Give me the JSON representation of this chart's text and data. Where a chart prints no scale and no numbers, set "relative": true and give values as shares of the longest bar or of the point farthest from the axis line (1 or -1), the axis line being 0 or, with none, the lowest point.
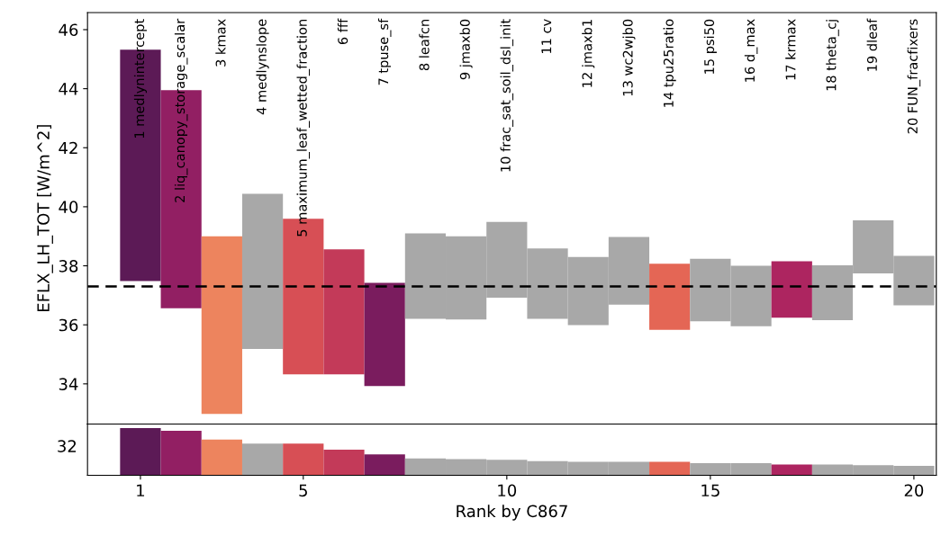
{
  "chart_data": [
    {
      "type": "bar",
      "ylabel": "EFLX_LH_TOT [W/m^2]",
      "tick_labels": "y",
      "x": [
        1,
        2,
        3,
        4,
        5,
        6,
        7,
        8,
        9,
        10,
        11,
        12,
        13,
        14,
        15,
        16,
        17,
        18,
        19,
        20
      ],
      "base": [
        37.48,
        36.56,
        32.98,
        35.18,
        34.32,
        34.32,
        33.93,
        36.2,
        36.18,
        36.92,
        36.2,
        35.99,
        36.68,
        35.83,
        36.12,
        35.95,
        36.24,
        36.16,
        37.74,
        36.66
      ],
      "values": [
        7.84,
        7.39,
        6.02,
        5.26,
        5.27,
        4.24,
        3.49,
        2.9,
        2.82,
        2.57,
        2.39,
        2.31,
        2.3,
        2.24,
        2.12,
        2.05,
        1.91,
        1.86,
        1.8,
        1.68
      ],
      "colors": [
        "#5c1a56",
        "#921f63",
        "#ed845e",
        "#a8a8a8",
        "#d74f55",
        "#c33a59",
        "#7a1c5e",
        "#a8a8a8",
        "#a8a8a8",
        "#a8a8a8",
        "#a8a8a8",
        "#a8a8a8",
        "#a8a8a8",
        "#e46655",
        "#a8a8a8",
        "#a8a8a8",
        "#ad2560",
        "#a8a8a8",
        "#a8a8a8",
        "#a8a8a8"
      ],
      "xlim": [
        -0.3,
        20.55
      ],
      "ylim": [
        32.64,
        46.58
      ],
      "yticks": [
        34,
        36,
        38,
        40,
        42,
        44,
        46
      ],
      "ref_lines": [
        {
          "axis": "y",
          "value": 37.3,
          "color": "#000000",
          "line_style": "dashed"
        }
      ],
      "annotations": [
        "1 medlynintercept",
        "2 liq_canopy_storage_scalar",
        "3 kmax",
        "4 medlynslope",
        "5 maximum_leaf_wetted_fraction",
        "6 fff",
        "7 tpuse_sf",
        "8 leafcn",
        "9 jmaxb0",
        "10 frac_sat_soil_dsl_init",
        "11 cv",
        "12 jmaxb1",
        "13 wc2wjb0",
        "14 tpu25ratio",
        "15 psi50",
        "16 d_max",
        "17 krmax",
        "18 theta_cj",
        "19 dleaf",
        "20 FUN_fracfixers"
      ]
    },
    {
      "type": "bar",
      "xlabel": "Rank by C867",
      "x": [
        1,
        2,
        3,
        4,
        5,
        6,
        7,
        8,
        9,
        10,
        11,
        12,
        13,
        14,
        15,
        16,
        17,
        18,
        19,
        20
      ],
      "relative": true,
      "annotations": [
        "32"
      ],
      "values": [
        1,
        0.943,
        0.757,
        0.671,
        0.671,
        0.543,
        0.443,
        0.357,
        0.343,
        0.329,
        0.3,
        0.286,
        0.286,
        0.286,
        0.257,
        0.257,
        0.229,
        0.229,
        0.214,
        0.2
      ],
      "colors": [
        "#5c1a56",
        "#921f63",
        "#ed845e",
        "#a8a8a8",
        "#d74f55",
        "#c33a59",
        "#7a1c5e",
        "#a8a8a8",
        "#a8a8a8",
        "#a8a8a8",
        "#a8a8a8",
        "#a8a8a8",
        "#a8a8a8",
        "#e46655",
        "#a8a8a8",
        "#a8a8a8",
        "#ad2560",
        "#a8a8a8",
        "#a8a8a8",
        "#a8a8a8"
      ],
      "xlim": [
        -0.3,
        20.55
      ],
      "xticks": [
        1,
        5,
        10,
        15,
        20
      ]
    }
  ]
}
